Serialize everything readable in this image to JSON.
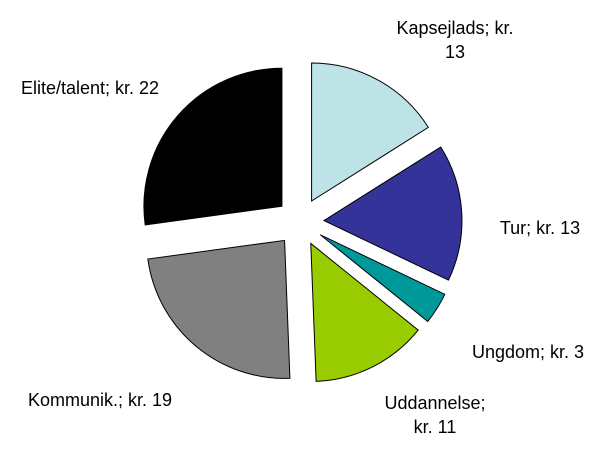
{
  "chart_data": {
    "type": "pie",
    "value_labels": [
      "Kapsejlads; kr. 13",
      "Tur; kr. 13",
      "Ungdom; kr. 3",
      "Uddannelse; kr. 11",
      "Kommunik.; kr. 19",
      "Elite/talent; kr. 22"
    ],
    "values": [
      13,
      13,
      3,
      11,
      19,
      22
    ],
    "colors": [
      "#bde3e6",
      "#333399",
      "#009999",
      "#99cc00",
      "#808080",
      "#000000"
    ]
  }
}
